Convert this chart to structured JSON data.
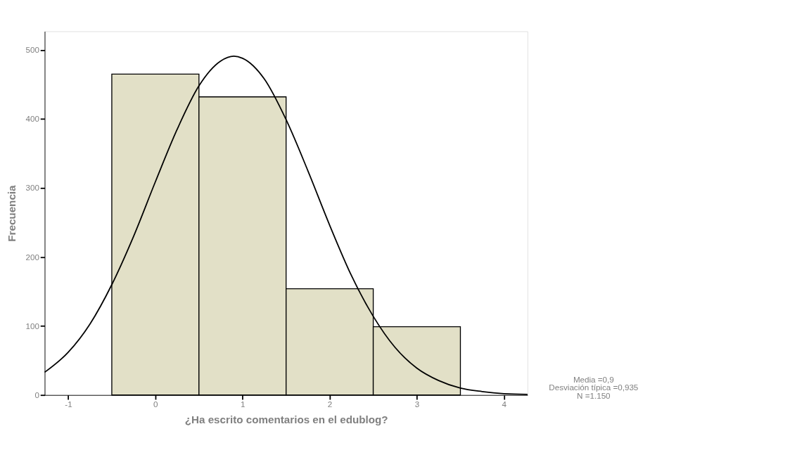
{
  "chart_data": {
    "type": "histogram",
    "xlabel": "¿Ha escrito comentarios en el edublog?",
    "ylabel": "Frecuencia",
    "bins": [
      -0.5,
      0.5,
      1.5,
      2.5,
      3.5
    ],
    "values": [
      465,
      432,
      154,
      99
    ],
    "color": "#e2e0c7",
    "xlim": [
      -1.27,
      4.27
    ],
    "xticks": [
      -1,
      0,
      1,
      2,
      3,
      4
    ],
    "ylim": [
      0,
      527
    ],
    "yticks": [
      0,
      100,
      200,
      300,
      400,
      500
    ],
    "grid": false,
    "series": [
      {
        "type": "line",
        "color": "#000000",
        "x": [
          -1.27,
          -1.0,
          -0.75,
          -0.5,
          -0.25,
          0,
          0.25,
          0.5,
          0.75,
          0.9,
          1.0,
          1.25,
          1.5,
          1.75,
          2.0,
          2.25,
          2.5,
          2.75,
          3.0,
          3.25,
          3.5,
          3.75,
          4.0,
          4.27
        ],
        "values": [
          33,
          62,
          103,
          160,
          230,
          309,
          385,
          448,
          484,
          491,
          488,
          458,
          399,
          325,
          246,
          173,
          114,
          69,
          39,
          21,
          10,
          5,
          2,
          1
        ]
      }
    ],
    "annotations": [
      "Media =0,9",
      "Desviación típica =0,935",
      "N =1.150"
    ]
  }
}
